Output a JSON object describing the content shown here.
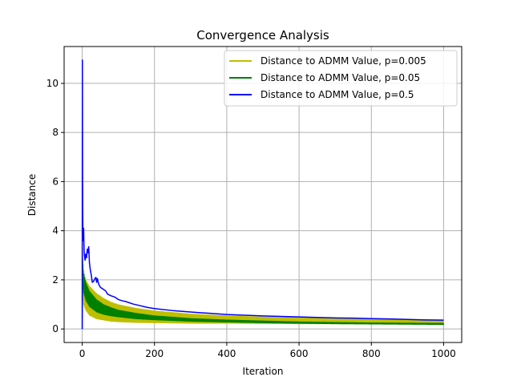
{
  "chart_data": {
    "type": "line",
    "title": "Convergence Analysis",
    "xlabel": "Iteration",
    "ylabel": "Distance",
    "xlim": [
      -50,
      1050
    ],
    "ylim": [
      -0.55,
      11.5
    ],
    "xticks": [
      0,
      200,
      400,
      600,
      800,
      1000
    ],
    "yticks": [
      0,
      2,
      4,
      6,
      8,
      10
    ],
    "grid": true,
    "legend_position": "upper-right",
    "series": [
      {
        "name": "Distance to ADMM Value, p=0.005",
        "color": "#bfbf00",
        "style": "oscillating-band",
        "upper": [
          [
            0,
            0
          ],
          [
            1,
            3.3
          ],
          [
            3,
            2.3
          ],
          [
            10,
            2.0
          ],
          [
            20,
            1.75
          ],
          [
            40,
            1.45
          ],
          [
            60,
            1.25
          ],
          [
            80,
            1.1
          ],
          [
            100,
            1.0
          ],
          [
            150,
            0.85
          ],
          [
            200,
            0.75
          ],
          [
            300,
            0.62
          ],
          [
            400,
            0.55
          ],
          [
            500,
            0.5
          ],
          [
            600,
            0.47
          ],
          [
            700,
            0.45
          ],
          [
            800,
            0.42
          ],
          [
            900,
            0.4
          ],
          [
            1000,
            0.38
          ]
        ],
        "lower": [
          [
            0,
            0
          ],
          [
            1,
            1.6
          ],
          [
            3,
            1.0
          ],
          [
            10,
            0.75
          ],
          [
            20,
            0.55
          ],
          [
            40,
            0.4
          ],
          [
            60,
            0.35
          ],
          [
            80,
            0.3
          ],
          [
            100,
            0.28
          ],
          [
            150,
            0.25
          ],
          [
            200,
            0.24
          ],
          [
            300,
            0.22
          ],
          [
            400,
            0.22
          ],
          [
            500,
            0.21
          ],
          [
            600,
            0.2
          ],
          [
            700,
            0.2
          ],
          [
            800,
            0.2
          ],
          [
            900,
            0.2
          ],
          [
            1000,
            0.2
          ]
        ]
      },
      {
        "name": "Distance to ADMM Value, p=0.05",
        "color": "#008000",
        "style": "oscillating-band",
        "upper": [
          [
            0,
            0
          ],
          [
            1,
            2.9
          ],
          [
            3,
            2.4
          ],
          [
            10,
            1.9
          ],
          [
            20,
            1.55
          ],
          [
            40,
            1.2
          ],
          [
            60,
            1.0
          ],
          [
            80,
            0.88
          ],
          [
            100,
            0.78
          ],
          [
            150,
            0.65
          ],
          [
            200,
            0.55
          ],
          [
            300,
            0.44
          ],
          [
            400,
            0.38
          ],
          [
            500,
            0.34
          ],
          [
            600,
            0.3
          ],
          [
            700,
            0.28
          ],
          [
            800,
            0.26
          ],
          [
            900,
            0.25
          ],
          [
            1000,
            0.24
          ]
        ],
        "lower": [
          [
            0,
            0
          ],
          [
            1,
            2.0
          ],
          [
            3,
            1.5
          ],
          [
            10,
            1.15
          ],
          [
            20,
            0.9
          ],
          [
            40,
            0.68
          ],
          [
            60,
            0.58
          ],
          [
            80,
            0.52
          ],
          [
            100,
            0.48
          ],
          [
            150,
            0.4
          ],
          [
            200,
            0.36
          ],
          [
            300,
            0.3
          ],
          [
            400,
            0.27
          ],
          [
            500,
            0.24
          ],
          [
            600,
            0.22
          ],
          [
            700,
            0.2
          ],
          [
            800,
            0.19
          ],
          [
            900,
            0.18
          ],
          [
            1000,
            0.17
          ]
        ]
      },
      {
        "name": "Distance to ADMM Value, p=0.5",
        "color": "#0000ff",
        "style": "line",
        "points": [
          [
            0,
            0
          ],
          [
            0.5,
            10.95
          ],
          [
            1,
            6.0
          ],
          [
            1.5,
            4.8
          ],
          [
            2,
            3.9
          ],
          [
            3,
            3.6
          ],
          [
            4,
            4.1
          ],
          [
            5,
            3.3
          ],
          [
            6,
            3.0
          ],
          [
            8,
            2.8
          ],
          [
            10,
            3.05
          ],
          [
            12,
            2.9
          ],
          [
            14,
            3.25
          ],
          [
            16,
            3.1
          ],
          [
            18,
            3.35
          ],
          [
            20,
            2.7
          ],
          [
            22,
            2.45
          ],
          [
            25,
            2.2
          ],
          [
            28,
            1.9
          ],
          [
            32,
            1.95
          ],
          [
            35,
            2.05
          ],
          [
            38,
            2.1
          ],
          [
            40,
            1.9
          ],
          [
            42,
            2.05
          ],
          [
            45,
            1.85
          ],
          [
            50,
            1.7
          ],
          [
            55,
            1.65
          ],
          [
            60,
            1.6
          ],
          [
            65,
            1.55
          ],
          [
            70,
            1.42
          ],
          [
            80,
            1.35
          ],
          [
            90,
            1.3
          ],
          [
            100,
            1.2
          ],
          [
            110,
            1.15
          ],
          [
            120,
            1.12
          ],
          [
            140,
            1.02
          ],
          [
            160,
            0.95
          ],
          [
            180,
            0.88
          ],
          [
            200,
            0.83
          ],
          [
            250,
            0.75
          ],
          [
            300,
            0.69
          ],
          [
            350,
            0.64
          ],
          [
            400,
            0.59
          ],
          [
            450,
            0.56
          ],
          [
            500,
            0.53
          ],
          [
            550,
            0.51
          ],
          [
            600,
            0.49
          ],
          [
            650,
            0.47
          ],
          [
            700,
            0.45
          ],
          [
            750,
            0.44
          ],
          [
            800,
            0.42
          ],
          [
            850,
            0.41
          ],
          [
            900,
            0.39
          ],
          [
            950,
            0.37
          ],
          [
            1000,
            0.36
          ]
        ]
      }
    ]
  }
}
